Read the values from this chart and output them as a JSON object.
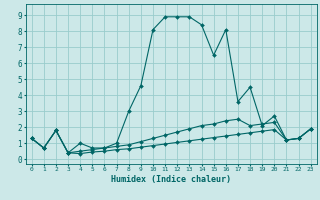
{
  "xlabel": "Humidex (Indice chaleur)",
  "background_color": "#cce8e8",
  "grid_color": "#99cccc",
  "line_color": "#006666",
  "xlim": [
    -0.5,
    23.5
  ],
  "ylim": [
    -0.3,
    9.7
  ],
  "xticks": [
    0,
    1,
    2,
    3,
    4,
    5,
    6,
    7,
    8,
    9,
    10,
    11,
    12,
    13,
    14,
    15,
    16,
    17,
    18,
    19,
    20,
    21,
    22,
    23
  ],
  "yticks": [
    0,
    1,
    2,
    3,
    4,
    5,
    6,
    7,
    8,
    9
  ],
  "series1_x": [
    0,
    1,
    2,
    3,
    4,
    5,
    6,
    7,
    8,
    9,
    10,
    11,
    12,
    13,
    14,
    15,
    16,
    17,
    18,
    19,
    20,
    21,
    22,
    23
  ],
  "series1_y": [
    1.3,
    0.7,
    1.8,
    0.4,
    1.0,
    0.7,
    0.7,
    1.0,
    3.0,
    4.6,
    8.1,
    8.9,
    8.9,
    8.9,
    8.4,
    6.5,
    8.1,
    3.6,
    4.5,
    2.1,
    2.7,
    1.2,
    1.3,
    1.9
  ],
  "series2_x": [
    0,
    1,
    2,
    3,
    4,
    5,
    6,
    7,
    8,
    9,
    10,
    11,
    12,
    13,
    14,
    15,
    16,
    17,
    18,
    19,
    20,
    21,
    22,
    23
  ],
  "series2_y": [
    1.3,
    0.7,
    1.8,
    0.4,
    0.5,
    0.6,
    0.7,
    0.8,
    0.9,
    1.1,
    1.3,
    1.5,
    1.7,
    1.9,
    2.1,
    2.2,
    2.4,
    2.5,
    2.1,
    2.2,
    2.3,
    1.2,
    1.3,
    1.9
  ],
  "series3_x": [
    0,
    1,
    2,
    3,
    4,
    5,
    6,
    7,
    8,
    9,
    10,
    11,
    12,
    13,
    14,
    15,
    16,
    17,
    18,
    19,
    20,
    21,
    22,
    23
  ],
  "series3_y": [
    1.3,
    0.7,
    1.8,
    0.4,
    0.35,
    0.45,
    0.5,
    0.6,
    0.65,
    0.75,
    0.85,
    0.95,
    1.05,
    1.15,
    1.25,
    1.35,
    1.45,
    1.55,
    1.65,
    1.75,
    1.85,
    1.2,
    1.3,
    1.9
  ]
}
